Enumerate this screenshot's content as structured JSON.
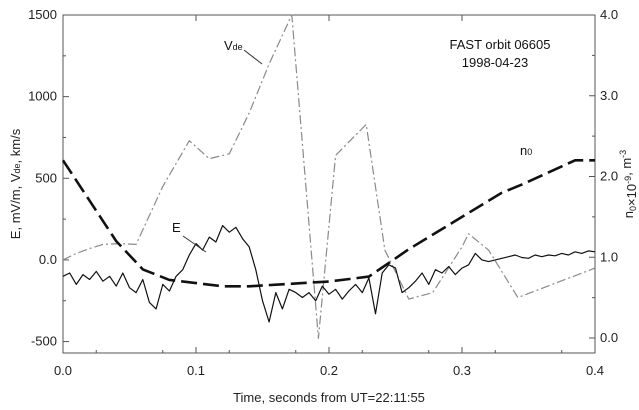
{
  "chart_data": {
    "type": "line",
    "title": [
      "FAST orbit 06605",
      "1998-04-23"
    ],
    "xlabel": "Time, seconds from UT=22:11:55",
    "ylabel_left": "E, mV/m,  V",
    "ylabel_left_sub": "de",
    "ylabel_left_tail": ", km/s",
    "ylabel_right": "n",
    "ylabel_right_sub": "0",
    "ylabel_right_tail": "×10",
    "ylabel_right_exp": "-9",
    "ylabel_right_unit": ", m",
    "ylabel_right_unit_exp": "-3",
    "xlim": [
      0.0,
      0.4
    ],
    "ylim_left": [
      -570,
      1500
    ],
    "ylim_right": [
      0.0,
      4.0
    ],
    "x_ticks": [
      "0.0",
      "0.1",
      "0.2",
      "0.3",
      "0.4"
    ],
    "y_ticks_left": [
      "1500",
      "1000",
      "500",
      "0.0",
      "-500"
    ],
    "y_ticks_right": [
      "4.0",
      "3.0",
      "2.0",
      "1.0",
      "0.0"
    ],
    "annotations": {
      "vde": "V",
      "vde_sub": "de",
      "e": "E",
      "n0": "n",
      "n0_sub": "0"
    },
    "series": [
      {
        "name": "Vde",
        "axis": "left",
        "style": "dash-dot",
        "x": [
          0.0,
          0.01,
          0.02,
          0.03,
          0.042,
          0.055,
          0.075,
          0.095,
          0.11,
          0.125,
          0.14,
          0.155,
          0.172,
          0.192,
          0.205,
          0.228,
          0.242,
          0.26,
          0.278,
          0.3,
          0.305,
          0.32,
          0.342,
          0.4
        ],
        "y": [
          0,
          40,
          70,
          95,
          100,
          95,
          450,
          730,
          620,
          650,
          900,
          1200,
          1500,
          -480,
          640,
          830,
          60,
          -240,
          -200,
          80,
          160,
          60,
          -230,
          -50
        ]
      },
      {
        "name": "E",
        "axis": "left",
        "style": "solid",
        "x": [
          0.0,
          0.005,
          0.01,
          0.015,
          0.02,
          0.025,
          0.03,
          0.035,
          0.04,
          0.045,
          0.05,
          0.055,
          0.06,
          0.065,
          0.07,
          0.075,
          0.08,
          0.085,
          0.09,
          0.095,
          0.1,
          0.105,
          0.11,
          0.115,
          0.12,
          0.125,
          0.13,
          0.135,
          0.14,
          0.145,
          0.15,
          0.155,
          0.16,
          0.165,
          0.17,
          0.175,
          0.18,
          0.185,
          0.19,
          0.195,
          0.2,
          0.205,
          0.21,
          0.215,
          0.22,
          0.225,
          0.23,
          0.235,
          0.24,
          0.245,
          0.25,
          0.255,
          0.26,
          0.265,
          0.27,
          0.275,
          0.28,
          0.285,
          0.29,
          0.295,
          0.3,
          0.305,
          0.31,
          0.315,
          0.32,
          0.325,
          0.33,
          0.335,
          0.34,
          0.345,
          0.35,
          0.355,
          0.36,
          0.365,
          0.37,
          0.375,
          0.38,
          0.385,
          0.39,
          0.395,
          0.4
        ],
        "y": [
          -100,
          -80,
          -150,
          -90,
          -120,
          -70,
          -130,
          -100,
          -160,
          -80,
          -170,
          -200,
          -120,
          -260,
          -300,
          -150,
          -190,
          -100,
          -60,
          30,
          100,
          60,
          140,
          110,
          210,
          170,
          200,
          130,
          80,
          -60,
          -250,
          -380,
          -200,
          -300,
          -180,
          -200,
          -230,
          -200,
          -250,
          -160,
          -210,
          -180,
          -240,
          -190,
          -150,
          -200,
          -110,
          -330,
          -80,
          -30,
          -50,
          -200,
          -170,
          -130,
          -80,
          -150,
          -60,
          -80,
          -40,
          -90,
          -50,
          -30,
          40,
          0,
          -10,
          0,
          10,
          20,
          30,
          15,
          10,
          30,
          20,
          30,
          25,
          40,
          30,
          50,
          40,
          55,
          50
        ]
      },
      {
        "name": "n0",
        "axis": "right",
        "style": "long-dash",
        "x": [
          0.0,
          0.02,
          0.04,
          0.06,
          0.08,
          0.1,
          0.12,
          0.14,
          0.16,
          0.18,
          0.2,
          0.23,
          0.26,
          0.3,
          0.33,
          0.345,
          0.385,
          0.4
        ],
        "y": [
          2.2,
          1.7,
          1.2,
          0.85,
          0.72,
          0.68,
          0.64,
          0.64,
          0.66,
          0.68,
          0.7,
          0.76,
          1.1,
          1.5,
          1.8,
          1.9,
          2.2,
          2.2
        ]
      }
    ],
    "grid": false
  }
}
